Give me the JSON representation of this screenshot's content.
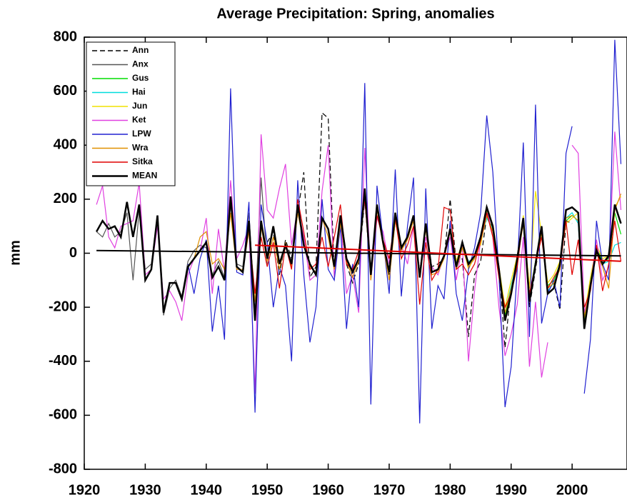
{
  "chart_data": {
    "type": "line",
    "title": "Average Precipitation: Spring, anomalies",
    "y_label": "mm",
    "xlim": [
      1920,
      2009
    ],
    "ylim": [
      -800,
      800
    ],
    "xticks": [
      1920,
      1930,
      1940,
      1950,
      1960,
      1970,
      1980,
      1990,
      2000
    ],
    "yticks": [
      800,
      600,
      400,
      200,
      0,
      -200,
      -400,
      -600,
      -800
    ],
    "legend": "upper left",
    "x": [
      1922,
      1923,
      1924,
      1925,
      1926,
      1927,
      1928,
      1929,
      1930,
      1931,
      1932,
      1933,
      1934,
      1935,
      1936,
      1937,
      1938,
      1939,
      1940,
      1941,
      1942,
      1943,
      1944,
      1945,
      1946,
      1947,
      1948,
      1949,
      1950,
      1951,
      1952,
      1953,
      1954,
      1955,
      1956,
      1957,
      1958,
      1959,
      1960,
      1961,
      1962,
      1963,
      1964,
      1965,
      1966,
      1967,
      1968,
      1969,
      1970,
      1971,
      1972,
      1973,
      1974,
      1975,
      1976,
      1977,
      1978,
      1979,
      1980,
      1981,
      1982,
      1983,
      1984,
      1985,
      1986,
      1987,
      1988,
      1989,
      1990,
      1991,
      1992,
      1993,
      1994,
      1995,
      1996,
      1997,
      1998,
      1999,
      2000,
      2001,
      2002,
      2003,
      2004,
      2005,
      2006,
      2007,
      2008
    ],
    "series": [
      {
        "name": "Ann",
        "color": "#000000",
        "dashed": true,
        "values": [
          null,
          null,
          null,
          null,
          null,
          null,
          null,
          null,
          null,
          null,
          null,
          null,
          null,
          null,
          null,
          null,
          null,
          null,
          null,
          null,
          null,
          null,
          null,
          null,
          null,
          null,
          null,
          null,
          40,
          80,
          -80,
          50,
          -20,
          150,
          300,
          -90,
          -50,
          520,
          500,
          -60,
          120,
          -40,
          -110,
          -40,
          200,
          -80,
          170,
          40,
          -80,
          120,
          20,
          60,
          120,
          -70,
          100,
          -50,
          -40,
          -20,
          200,
          -40,
          -20,
          -310,
          -80,
          -30,
          140,
          90,
          -50,
          -350,
          -120,
          -30,
          140,
          -200,
          -60,
          80,
          -140,
          -110,
          -210,
          120,
          110,
          null,
          null,
          null,
          null,
          null,
          null,
          null,
          null
        ]
      },
      {
        "name": "Anx",
        "color": "#555555",
        "values": [
          80,
          60,
          110,
          60,
          80,
          150,
          -100,
          160,
          -60,
          -40,
          140,
          -230,
          -130,
          -100,
          -160,
          -30,
          10,
          30,
          20,
          -80,
          -30,
          -90,
          180,
          -40,
          -50,
          150,
          -230,
          280,
          -40,
          null,
          null,
          null,
          null,
          null,
          null,
          null,
          null,
          null,
          null,
          null,
          null,
          null,
          null,
          null,
          null,
          null,
          null,
          null,
          null,
          null,
          null,
          null,
          null,
          null,
          null,
          null,
          null,
          null,
          null,
          null,
          null,
          null,
          null,
          null,
          null,
          null,
          null,
          null,
          null,
          null,
          null,
          null,
          null,
          null,
          null,
          null,
          null,
          null,
          null,
          null,
          null,
          null,
          null,
          null,
          null,
          null,
          null
        ]
      },
      {
        "name": "Gus",
        "color": "#00dd00",
        "values": [
          null,
          null,
          null,
          null,
          null,
          null,
          null,
          null,
          null,
          null,
          null,
          null,
          null,
          null,
          null,
          null,
          null,
          null,
          null,
          null,
          null,
          null,
          null,
          null,
          null,
          null,
          null,
          null,
          null,
          null,
          null,
          null,
          null,
          null,
          null,
          null,
          null,
          null,
          null,
          null,
          null,
          null,
          null,
          null,
          null,
          null,
          null,
          null,
          null,
          null,
          null,
          null,
          null,
          null,
          null,
          null,
          null,
          null,
          60,
          -40,
          30,
          -50,
          -20,
          40,
          150,
          80,
          -60,
          -230,
          -130,
          -20,
          110,
          -160,
          -30,
          80,
          -120,
          -100,
          -40,
          120,
          140,
          120,
          -250,
          -110,
          20,
          -30,
          -20,
          150,
          70
        ]
      },
      {
        "name": "Hai",
        "color": "#00dddd",
        "values": [
          null,
          null,
          null,
          null,
          null,
          null,
          null,
          null,
          null,
          null,
          null,
          null,
          null,
          null,
          null,
          null,
          null,
          null,
          null,
          null,
          null,
          null,
          null,
          null,
          null,
          null,
          null,
          null,
          null,
          null,
          null,
          null,
          null,
          null,
          null,
          null,
          null,
          null,
          null,
          null,
          null,
          null,
          null,
          null,
          null,
          null,
          null,
          null,
          null,
          null,
          null,
          null,
          null,
          null,
          null,
          null,
          null,
          null,
          80,
          -60,
          20,
          -30,
          -20,
          50,
          130,
          90,
          -80,
          -220,
          -120,
          -30,
          120,
          -150,
          -40,
          90,
          -140,
          -110,
          -50,
          130,
          150,
          110,
          -240,
          -100,
          10,
          -40,
          -30,
          30,
          40
        ]
      },
      {
        "name": "Jun",
        "color": "#f0e000",
        "values": [
          null,
          null,
          null,
          null,
          null,
          null,
          null,
          null,
          null,
          null,
          null,
          null,
          null,
          null,
          null,
          null,
          null,
          null,
          null,
          null,
          null,
          null,
          null,
          null,
          null,
          null,
          null,
          null,
          null,
          null,
          null,
          null,
          null,
          null,
          null,
          null,
          null,
          null,
          null,
          null,
          null,
          null,
          null,
          null,
          null,
          null,
          null,
          null,
          null,
          null,
          null,
          null,
          null,
          null,
          null,
          null,
          null,
          null,
          100,
          -30,
          40,
          -60,
          -10,
          30,
          160,
          100,
          -50,
          -200,
          -100,
          -10,
          140,
          -130,
          230,
          70,
          -110,
          -80,
          -30,
          110,
          130,
          150,
          -230,
          -90,
          30,
          -20,
          -10,
          170,
          210
        ]
      },
      {
        "name": "Ket",
        "color": "#e040e0",
        "values": [
          180,
          250,
          60,
          20,
          100,
          110,
          120,
          260,
          -80,
          -60,
          100,
          -170,
          -140,
          -180,
          -250,
          -80,
          -20,
          10,
          130,
          -150,
          90,
          -70,
          270,
          -20,
          30,
          100,
          -520,
          440,
          160,
          130,
          240,
          330,
          30,
          170,
          60,
          -100,
          -80,
          230,
          400,
          -90,
          130,
          -150,
          -80,
          -220,
          390,
          -100,
          130,
          80,
          -40,
          140,
          30,
          -40,
          100,
          -80,
          60,
          -50,
          -80,
          -10,
          60,
          -100,
          30,
          -400,
          -140,
          50,
          170,
          60,
          -200,
          -380,
          -300,
          -190,
          60,
          -420,
          -180,
          -460,
          -330,
          null,
          null,
          null,
          400,
          370,
          -220,
          -120,
          50,
          -100,
          -50,
          450,
          160
        ]
      },
      {
        "name": "LPW",
        "color": "#2020d0",
        "values": [
          null,
          null,
          null,
          null,
          null,
          null,
          null,
          null,
          null,
          null,
          null,
          null,
          null,
          null,
          null,
          -40,
          -150,
          -20,
          50,
          -290,
          -120,
          -320,
          610,
          -70,
          -80,
          190,
          -590,
          180,
          40,
          -200,
          -50,
          -120,
          -400,
          270,
          -80,
          -330,
          -200,
          200,
          -60,
          -100,
          100,
          -280,
          -40,
          -200,
          630,
          -560,
          250,
          50,
          -150,
          310,
          -160,
          100,
          280,
          -630,
          240,
          -280,
          -120,
          -170,
          120,
          -150,
          -250,
          -60,
          20,
          150,
          510,
          300,
          -80,
          -570,
          -420,
          -60,
          410,
          -310,
          550,
          -260,
          -150,
          -100,
          -200,
          370,
          470,
          null,
          -520,
          -320,
          120,
          -40,
          -100,
          790,
          330
        ]
      },
      {
        "name": "Wra",
        "color": "#e09000",
        "values": [
          null,
          null,
          null,
          null,
          null,
          null,
          null,
          null,
          null,
          null,
          null,
          null,
          null,
          null,
          null,
          null,
          -20,
          60,
          80,
          -40,
          -20,
          -60,
          150,
          -60,
          -60,
          80,
          -180,
          100,
          -30,
          60,
          -60,
          40,
          -50,
          150,
          40,
          -50,
          -70,
          130,
          60,
          -60,
          110,
          -30,
          -90,
          -30,
          220,
          -100,
          160,
          30,
          -100,
          120,
          10,
          50,
          120,
          -90,
          90,
          -80,
          -70,
          -20,
          80,
          -60,
          20,
          -50,
          -20,
          40,
          140,
          80,
          -70,
          -220,
          -130,
          -30,
          110,
          -160,
          -50,
          80,
          -130,
          -110,
          -60,
          130,
          140,
          120,
          -240,
          -110,
          0,
          -50,
          -130,
          160,
          220
        ]
      },
      {
        "name": "Sitka",
        "color": "#e00000",
        "values": [
          null,
          null,
          null,
          null,
          null,
          null,
          null,
          null,
          null,
          null,
          null,
          null,
          null,
          null,
          null,
          null,
          null,
          null,
          null,
          null,
          null,
          null,
          null,
          null,
          null,
          80,
          -150,
          60,
          -50,
          40,
          -130,
          30,
          -60,
          200,
          80,
          -60,
          -40,
          60,
          -50,
          60,
          180,
          -40,
          -60,
          10,
          200,
          -80,
          140,
          50,
          -20,
          130,
          -20,
          30,
          100,
          -190,
          40,
          -100,
          -60,
          170,
          160,
          -60,
          -40,
          -80,
          -40,
          50,
          150,
          60,
          -90,
          -200,
          -150,
          -50,
          130,
          -150,
          -40,
          60,
          -130,
          -90,
          -50,
          120,
          -80,
          50,
          -200,
          -140,
          30,
          -140,
          -40,
          120,
          -30
        ]
      },
      {
        "name": "MEAN",
        "color": "#000000",
        "linewidth": 2.5,
        "values": [
          80,
          120,
          90,
          100,
          60,
          190,
          60,
          180,
          -100,
          -60,
          140,
          -220,
          -110,
          -110,
          -170,
          -50,
          -20,
          10,
          40,
          -90,
          -50,
          -100,
          210,
          -50,
          -70,
          120,
          -250,
          120,
          -20,
          100,
          -40,
          30,
          -40,
          180,
          30,
          -40,
          -80,
          130,
          90,
          -50,
          140,
          -20,
          -70,
          -20,
          240,
          -80,
          180,
          40,
          -70,
          150,
          20,
          60,
          140,
          -90,
          110,
          -70,
          -60,
          -10,
          90,
          -50,
          40,
          -40,
          -10,
          60,
          170,
          100,
          -60,
          -250,
          -150,
          -20,
          130,
          -180,
          -40,
          100,
          -150,
          -130,
          -40,
          160,
          170,
          150,
          -280,
          -120,
          10,
          -40,
          -10,
          180,
          110
        ]
      }
    ],
    "trend_lines": [
      {
        "color": "#000000",
        "x": [
          1922,
          2008
        ],
        "values": [
          10,
          -10
        ]
      },
      {
        "color": "#e00000",
        "x": [
          1948,
          2008
        ],
        "values": [
          30,
          -30
        ]
      }
    ]
  }
}
